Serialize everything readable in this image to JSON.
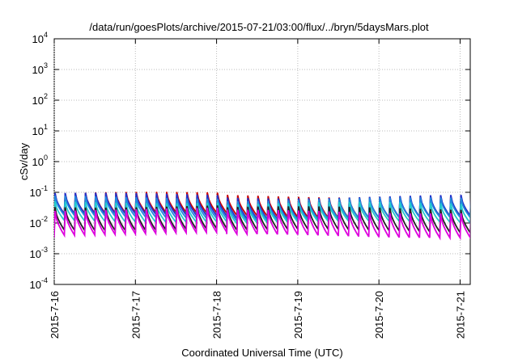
{
  "chart_data": {
    "type": "line",
    "title": "/data/run/goesPlots/archive/2015-07-21/03:00/flux/../bryn/5daysMars.plot",
    "xlabel": "Coordinated Universal Time (UTC)",
    "ylabel": "cSv/day",
    "yscale": "log",
    "ylim": [
      0.0001,
      10000
    ],
    "y_ticks": [
      {
        "base": "10",
        "exp": "-4",
        "value": 0.0001
      },
      {
        "base": "10",
        "exp": "-3",
        "value": 0.001
      },
      {
        "base": "10",
        "exp": "-2",
        "value": 0.01
      },
      {
        "base": "10",
        "exp": "-1",
        "value": 0.1
      },
      {
        "base": "10",
        "exp": "0",
        "value": 1
      },
      {
        "base": "10",
        "exp": "1",
        "value": 10
      },
      {
        "base": "10",
        "exp": "2",
        "value": 100
      },
      {
        "base": "10",
        "exp": "3",
        "value": 1000
      },
      {
        "base": "10",
        "exp": "4",
        "value": 10000
      }
    ],
    "xlim": [
      "2015-07-16",
      "2015-07-21 03:00"
    ],
    "x_ticks": [
      "2015-7-16",
      "2015-7-17",
      "2015-7-18",
      "2015-7-19",
      "2015-7-20",
      "2015-7-21"
    ],
    "grid": true,
    "period_hours": 3,
    "series": [
      {
        "color": "#cc0000",
        "peak": 0.092,
        "trough": 0.02
      },
      {
        "color": "#2233cc",
        "peak": 0.086,
        "trough": 0.018
      },
      {
        "color": "#2288dd",
        "peak": 0.07,
        "trough": 0.016
      },
      {
        "color": "#22cccc",
        "peak": 0.05,
        "trough": 0.012
      },
      {
        "color": "#222222",
        "peak": 0.036,
        "trough": 0.0065
      },
      {
        "color": "#dd00dd",
        "peak": 0.028,
        "trough": 0.0045
      }
    ]
  }
}
